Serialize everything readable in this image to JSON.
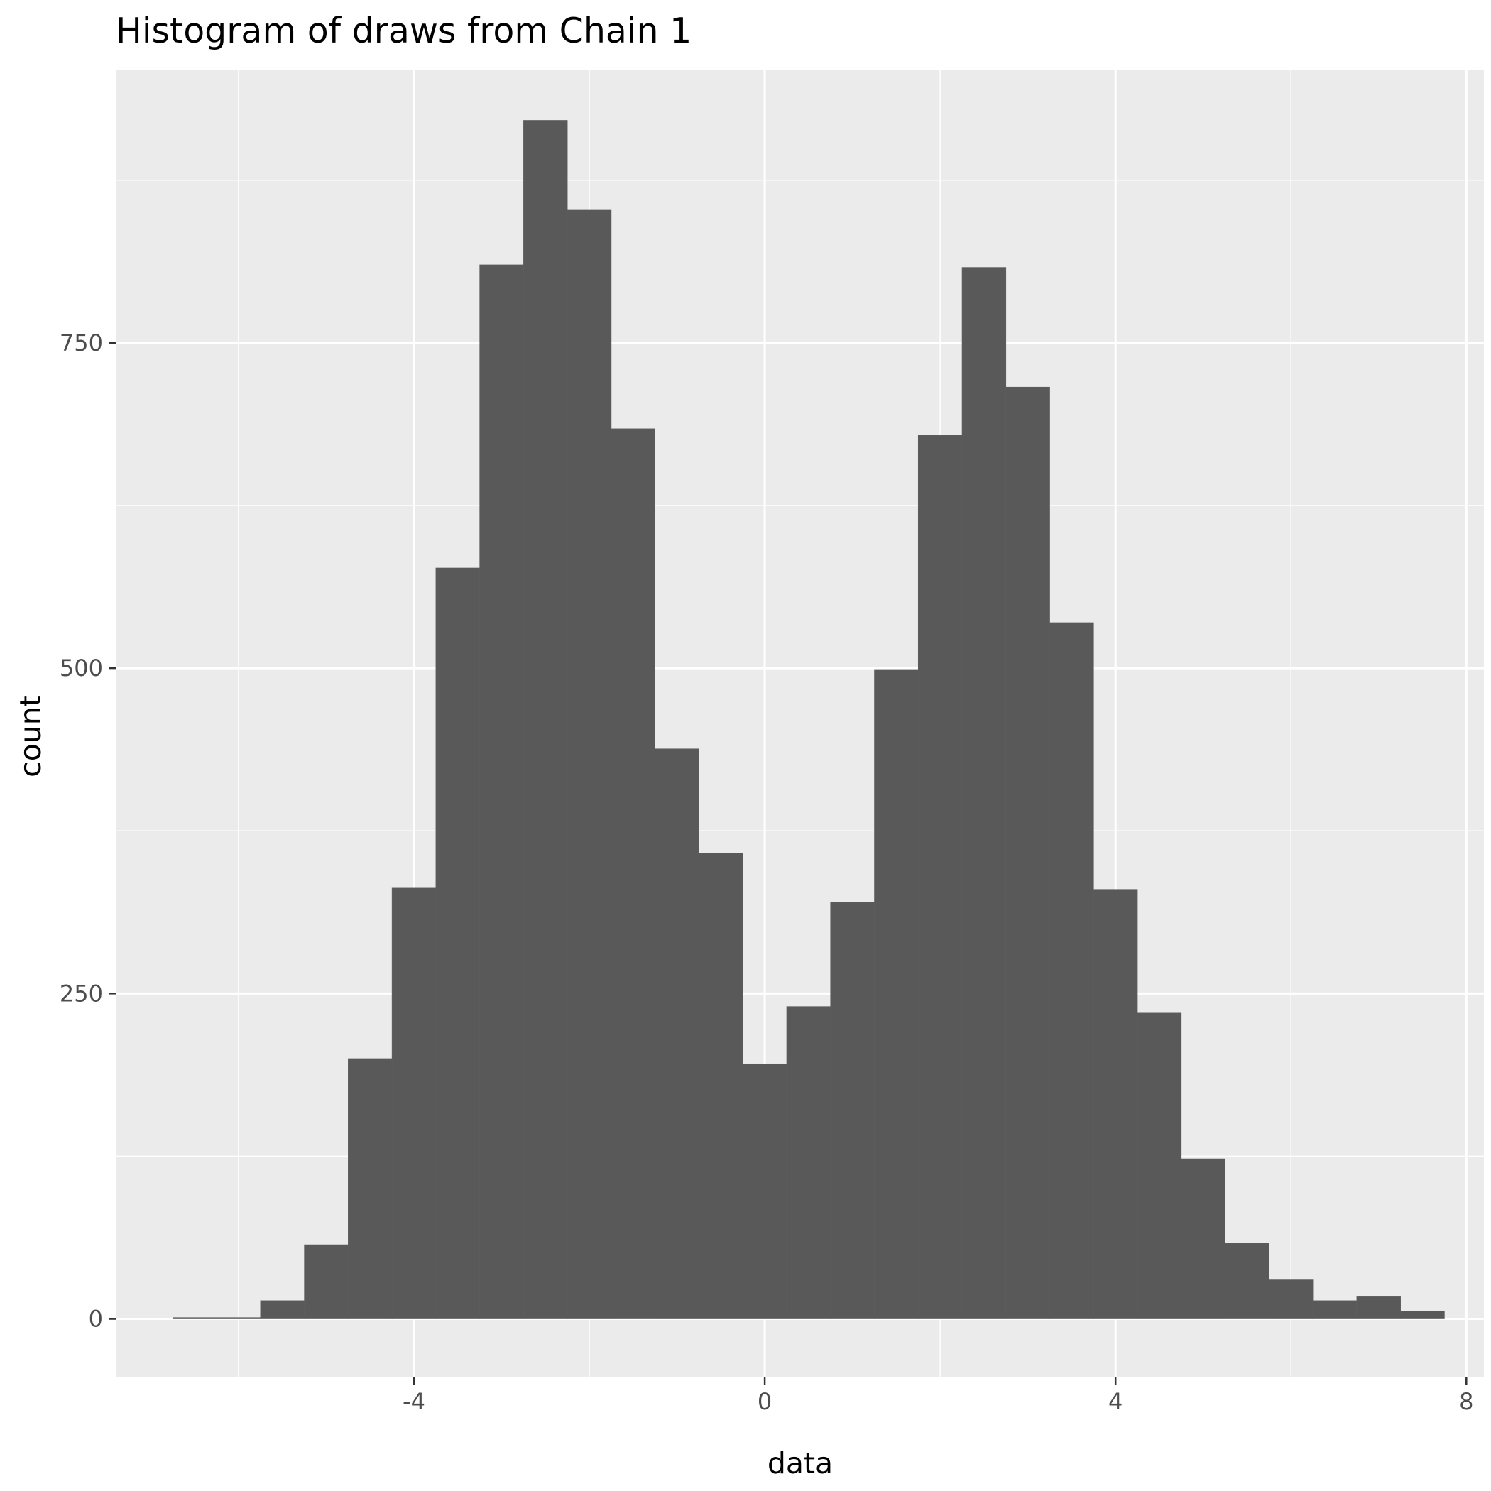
{
  "chart_data": {
    "type": "bar",
    "title": "Histogram of draws from Chain 1",
    "xlabel": "data",
    "ylabel": "count",
    "x_ticks": [
      -4,
      0,
      4,
      8
    ],
    "y_ticks": [
      0,
      250,
      500,
      750
    ],
    "xlim": [
      -7.4,
      8.2
    ],
    "ylim": [
      -45,
      960
    ],
    "bin_width": 0.5,
    "bins": [
      {
        "x0": -6.75,
        "x1": -6.25,
        "count": 1
      },
      {
        "x0": -6.25,
        "x1": -5.75,
        "count": 1
      },
      {
        "x0": -5.75,
        "x1": -5.25,
        "count": 14
      },
      {
        "x0": -5.25,
        "x1": -4.75,
        "count": 57
      },
      {
        "x0": -4.75,
        "x1": -4.25,
        "count": 200
      },
      {
        "x0": -4.25,
        "x1": -3.75,
        "count": 331
      },
      {
        "x0": -3.75,
        "x1": -3.25,
        "count": 577
      },
      {
        "x0": -3.25,
        "x1": -2.75,
        "count": 810
      },
      {
        "x0": -2.75,
        "x1": -2.25,
        "count": 921
      },
      {
        "x0": -2.25,
        "x1": -1.75,
        "count": 852
      },
      {
        "x0": -1.75,
        "x1": -1.25,
        "count": 684
      },
      {
        "x0": -1.25,
        "x1": -0.75,
        "count": 438
      },
      {
        "x0": -0.75,
        "x1": -0.25,
        "count": 358
      },
      {
        "x0": -0.25,
        "x1": 0.25,
        "count": 196
      },
      {
        "x0": 0.25,
        "x1": 0.75,
        "count": 240
      },
      {
        "x0": 0.75,
        "x1": 1.25,
        "count": 320
      },
      {
        "x0": 1.25,
        "x1": 1.75,
        "count": 499
      },
      {
        "x0": 1.75,
        "x1": 2.25,
        "count": 679
      },
      {
        "x0": 2.25,
        "x1": 2.75,
        "count": 808
      },
      {
        "x0": 2.75,
        "x1": 3.25,
        "count": 716
      },
      {
        "x0": 3.25,
        "x1": 3.75,
        "count": 535
      },
      {
        "x0": 3.75,
        "x1": 4.25,
        "count": 330
      },
      {
        "x0": 4.25,
        "x1": 4.75,
        "count": 235
      },
      {
        "x0": 4.75,
        "x1": 5.25,
        "count": 123
      },
      {
        "x0": 5.25,
        "x1": 5.75,
        "count": 58
      },
      {
        "x0": 5.75,
        "x1": 6.25,
        "count": 30
      },
      {
        "x0": 6.25,
        "x1": 6.75,
        "count": 14
      },
      {
        "x0": 6.75,
        "x1": 7.25,
        "count": 17
      },
      {
        "x0": 7.25,
        "x1": 7.75,
        "count": 6
      }
    ],
    "grid": true,
    "colors": {
      "bar_fill": "#595959",
      "panel_background": "#ebebeb",
      "grid_line": "#ffffff",
      "tick_label": "#4d4d4d",
      "tick_mark": "#333333"
    }
  }
}
